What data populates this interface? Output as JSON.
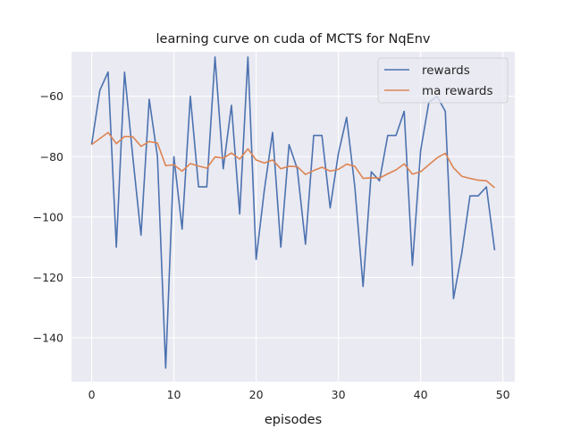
{
  "chart_data": {
    "type": "line",
    "title": "learning curve on cuda of MCTS for NqEnv",
    "xlabel": "episodes",
    "ylabel": "",
    "xlim": [
      -2.45,
      51.45
    ],
    "ylim": [
      -154.5,
      -45.3
    ],
    "xticks": [
      0,
      10,
      20,
      30,
      40,
      50
    ],
    "yticks": [
      -140,
      -120,
      -100,
      -80,
      -60
    ],
    "grid": true,
    "legend_position": "top-right",
    "background_color": "#eaeaf2",
    "grid_color": "#ffffff",
    "x": [
      0,
      1,
      2,
      3,
      4,
      5,
      6,
      7,
      8,
      9,
      10,
      11,
      12,
      13,
      14,
      15,
      16,
      17,
      18,
      19,
      20,
      21,
      22,
      23,
      24,
      25,
      26,
      27,
      28,
      29,
      30,
      31,
      32,
      33,
      34,
      35,
      36,
      37,
      38,
      39,
      40,
      41,
      42,
      43,
      44,
      45,
      46,
      47,
      48,
      49
    ],
    "series": [
      {
        "name": "rewards",
        "color": "#4c72b0",
        "values": [
          -76,
          -58,
          -52,
          -110,
          -52,
          -80,
          -106,
          -61,
          -80,
          -150,
          -80,
          -104,
          -60,
          -90,
          -90,
          -47,
          -84,
          -63,
          -99,
          -47,
          -114,
          -91,
          -72,
          -110,
          -76,
          -84,
          -109,
          -73,
          -73,
          -97,
          -79,
          -67,
          -90,
          -123,
          -85,
          -88,
          -73,
          -73,
          -65,
          -116,
          -78,
          -62,
          -60,
          -65,
          -127,
          -112,
          -93,
          -93,
          -90,
          -111
        ]
      },
      {
        "name": "ma rewards",
        "color": "#dd8452",
        "values": [
          -76,
          -74,
          -72,
          -75.7,
          -73.3,
          -73.4,
          -76.6,
          -75,
          -75.5,
          -83,
          -82.7,
          -84.8,
          -82.3,
          -83.1,
          -83.8,
          -80.1,
          -80.5,
          -78.8,
          -80.8,
          -77.4,
          -81.1,
          -82.1,
          -81.1,
          -84,
          -83.2,
          -83.3,
          -85.9,
          -84.6,
          -83.5,
          -84.8,
          -84.2,
          -82.5,
          -83.2,
          -87.2,
          -87,
          -87.1,
          -85.7,
          -84.4,
          -82.4,
          -85.8,
          -85,
          -82.7,
          -80.4,
          -78.9,
          -83.7,
          -86.5,
          -87.2,
          -87.8,
          -88,
          -90.3
        ]
      }
    ]
  }
}
